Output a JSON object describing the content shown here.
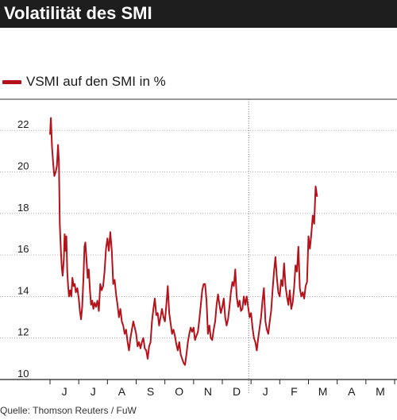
{
  "header": {
    "title": "Volatilität des SMI"
  },
  "source": "Quelle: Thomson Reuters / FuW",
  "colors": {
    "series": "#b5121b",
    "title_bg": "#1e1e1e",
    "grid": "#999999"
  },
  "chart_data": {
    "type": "line",
    "title": "Volatilität des SMI",
    "xlabel": "",
    "ylabel": "",
    "ylim": [
      10,
      23.5
    ],
    "yticks": [
      10,
      12,
      14,
      16,
      18,
      20,
      22
    ],
    "x_categories": [
      "J",
      "J",
      "A",
      "S",
      "O",
      "N",
      "D",
      "J",
      "F",
      "M",
      "A",
      "M"
    ],
    "grid": "horizontal",
    "legend_placement": "top-left",
    "series": [
      {
        "name": "VSMI auf den SMI in %",
        "points": [
          [
            0.0,
            21.8
          ],
          [
            0.03,
            22.6
          ],
          [
            0.07,
            21.2
          ],
          [
            0.11,
            20.4
          ],
          [
            0.15,
            19.8
          ],
          [
            0.2,
            20.0
          ],
          [
            0.24,
            20.3
          ],
          [
            0.28,
            21.3
          ],
          [
            0.31,
            20.5
          ],
          [
            0.34,
            17.5
          ],
          [
            0.38,
            16.2
          ],
          [
            0.41,
            15.4
          ],
          [
            0.44,
            15.0
          ],
          [
            0.48,
            15.8
          ],
          [
            0.51,
            17.0
          ],
          [
            0.54,
            16.2
          ],
          [
            0.57,
            16.9
          ],
          [
            0.6,
            15.2
          ],
          [
            0.63,
            14.5
          ],
          [
            0.66,
            14.0
          ],
          [
            0.7,
            14.3
          ],
          [
            0.74,
            14.0
          ],
          [
            0.78,
            14.9
          ],
          [
            0.82,
            14.5
          ],
          [
            0.86,
            14.6
          ],
          [
            0.9,
            14.2
          ],
          [
            0.95,
            14.4
          ],
          [
            1.0,
            13.9
          ],
          [
            1.04,
            13.3
          ],
          [
            1.08,
            12.9
          ],
          [
            1.12,
            13.5
          ],
          [
            1.16,
            14.8
          ],
          [
            1.2,
            16.4
          ],
          [
            1.23,
            16.6
          ],
          [
            1.27,
            15.8
          ],
          [
            1.31,
            14.9
          ],
          [
            1.35,
            15.3
          ],
          [
            1.39,
            14.3
          ],
          [
            1.43,
            13.6
          ],
          [
            1.47,
            13.8
          ],
          [
            1.51,
            13.4
          ],
          [
            1.55,
            13.7
          ],
          [
            1.6,
            13.5
          ],
          [
            1.65,
            13.8
          ],
          [
            1.7,
            13.3
          ],
          [
            1.75,
            14.6
          ],
          [
            1.8,
            14.3
          ],
          [
            1.85,
            14.5
          ],
          [
            1.9,
            15.2
          ],
          [
            1.95,
            16.3
          ],
          [
            2.0,
            16.8
          ],
          [
            2.05,
            16.2
          ],
          [
            2.1,
            17.1
          ],
          [
            2.15,
            16.2
          ],
          [
            2.2,
            14.6
          ],
          [
            2.25,
            14.8
          ],
          [
            2.3,
            14.1
          ],
          [
            2.35,
            13.6
          ],
          [
            2.4,
            13.0
          ],
          [
            2.45,
            13.4
          ],
          [
            2.5,
            12.8
          ],
          [
            2.55,
            12.6
          ],
          [
            2.6,
            12.2
          ],
          [
            2.65,
            12.4
          ],
          [
            2.7,
            11.8
          ],
          [
            2.75,
            11.4
          ],
          [
            2.8,
            12.0
          ],
          [
            2.85,
            12.4
          ],
          [
            2.9,
            12.8
          ],
          [
            2.95,
            12.5
          ],
          [
            3.0,
            12.2
          ],
          [
            3.05,
            11.6
          ],
          [
            3.1,
            11.8
          ],
          [
            3.15,
            11.5
          ],
          [
            3.2,
            11.8
          ],
          [
            3.25,
            12.0
          ],
          [
            3.3,
            11.5
          ],
          [
            3.35,
            11.4
          ],
          [
            3.4,
            11.0
          ],
          [
            3.45,
            11.6
          ],
          [
            3.5,
            11.8
          ],
          [
            3.55,
            12.8
          ],
          [
            3.6,
            13.4
          ],
          [
            3.65,
            13.9
          ],
          [
            3.7,
            13.1
          ],
          [
            3.75,
            13.2
          ],
          [
            3.8,
            12.6
          ],
          [
            3.85,
            13.0
          ],
          [
            3.9,
            13.4
          ],
          [
            3.95,
            13.0
          ],
          [
            4.0,
            12.8
          ],
          [
            4.05,
            13.6
          ],
          [
            4.1,
            14.5
          ],
          [
            4.15,
            13.2
          ],
          [
            4.2,
            12.7
          ],
          [
            4.25,
            12.2
          ],
          [
            4.3,
            12.4
          ],
          [
            4.35,
            12.1
          ],
          [
            4.4,
            11.7
          ],
          [
            4.45,
            11.4
          ],
          [
            4.5,
            11.8
          ],
          [
            4.55,
            11.2
          ],
          [
            4.6,
            11.0
          ],
          [
            4.65,
            10.8
          ],
          [
            4.7,
            10.7
          ],
          [
            4.75,
            11.2
          ],
          [
            4.8,
            11.8
          ],
          [
            4.85,
            12.2
          ],
          [
            4.9,
            12.5
          ],
          [
            4.95,
            12.3
          ],
          [
            5.0,
            12.5
          ],
          [
            5.05,
            11.9
          ],
          [
            5.1,
            12.1
          ],
          [
            5.15,
            12.3
          ],
          [
            5.2,
            12.9
          ],
          [
            5.25,
            13.6
          ],
          [
            5.3,
            14.3
          ],
          [
            5.35,
            14.6
          ],
          [
            5.4,
            14.6
          ],
          [
            5.45,
            13.8
          ],
          [
            5.5,
            12.2
          ],
          [
            5.55,
            12.6
          ],
          [
            5.6,
            12.0
          ],
          [
            5.65,
            11.9
          ],
          [
            5.7,
            12.4
          ],
          [
            5.75,
            12.8
          ],
          [
            5.8,
            13.6
          ],
          [
            5.85,
            14.1
          ],
          [
            5.9,
            13.6
          ],
          [
            5.95,
            13.2
          ],
          [
            6.0,
            13.5
          ],
          [
            6.05,
            13.9
          ],
          [
            6.1,
            13.0
          ],
          [
            6.15,
            12.6
          ],
          [
            6.2,
            12.9
          ],
          [
            6.25,
            13.5
          ],
          [
            6.3,
            14.2
          ],
          [
            6.35,
            14.7
          ],
          [
            6.4,
            14.5
          ],
          [
            6.45,
            15.3
          ],
          [
            6.5,
            14.0
          ],
          [
            6.55,
            13.5
          ],
          [
            6.6,
            13.8
          ],
          [
            6.65,
            13.3
          ],
          [
            6.7,
            13.4
          ],
          [
            6.75,
            14.0
          ],
          [
            6.8,
            13.6
          ],
          [
            6.85,
            14.0
          ],
          [
            6.9,
            13.5
          ],
          [
            6.95,
            13.0
          ],
          [
            7.0,
            13.2
          ],
          [
            7.05,
            12.5
          ],
          [
            7.1,
            12.0
          ],
          [
            7.15,
            11.8
          ],
          [
            7.2,
            11.4
          ],
          [
            7.25,
            12.0
          ],
          [
            7.3,
            12.5
          ],
          [
            7.35,
            13.0
          ],
          [
            7.4,
            13.8
          ],
          [
            7.45,
            14.4
          ],
          [
            7.5,
            12.8
          ],
          [
            7.55,
            12.4
          ],
          [
            7.6,
            12.2
          ],
          [
            7.65,
            12.8
          ],
          [
            7.7,
            13.3
          ],
          [
            7.75,
            14.3
          ],
          [
            7.8,
            15.2
          ],
          [
            7.85,
            15.9
          ],
          [
            7.9,
            14.9
          ],
          [
            7.95,
            14.2
          ],
          [
            8.0,
            14.0
          ],
          [
            8.05,
            14.8
          ],
          [
            8.1,
            14.5
          ],
          [
            8.15,
            15.6
          ],
          [
            8.2,
            14.5
          ],
          [
            8.25,
            14.0
          ],
          [
            8.3,
            13.6
          ],
          [
            8.35,
            14.3
          ],
          [
            8.4,
            13.4
          ],
          [
            8.45,
            13.7
          ],
          [
            8.5,
            14.4
          ],
          [
            8.55,
            15.5
          ],
          [
            8.6,
            15.2
          ],
          [
            8.65,
            16.4
          ],
          [
            8.7,
            14.4
          ],
          [
            8.75,
            14.0
          ],
          [
            8.8,
            14.2
          ],
          [
            8.85,
            13.9
          ],
          [
            8.9,
            14.5
          ],
          [
            8.95,
            14.7
          ],
          [
            9.0,
            16.9
          ],
          [
            9.05,
            16.3
          ],
          [
            9.1,
            17.0
          ],
          [
            9.15,
            17.9
          ],
          [
            9.2,
            17.5
          ],
          [
            9.25,
            19.3
          ],
          [
            9.3,
            18.8
          ]
        ]
      }
    ]
  }
}
